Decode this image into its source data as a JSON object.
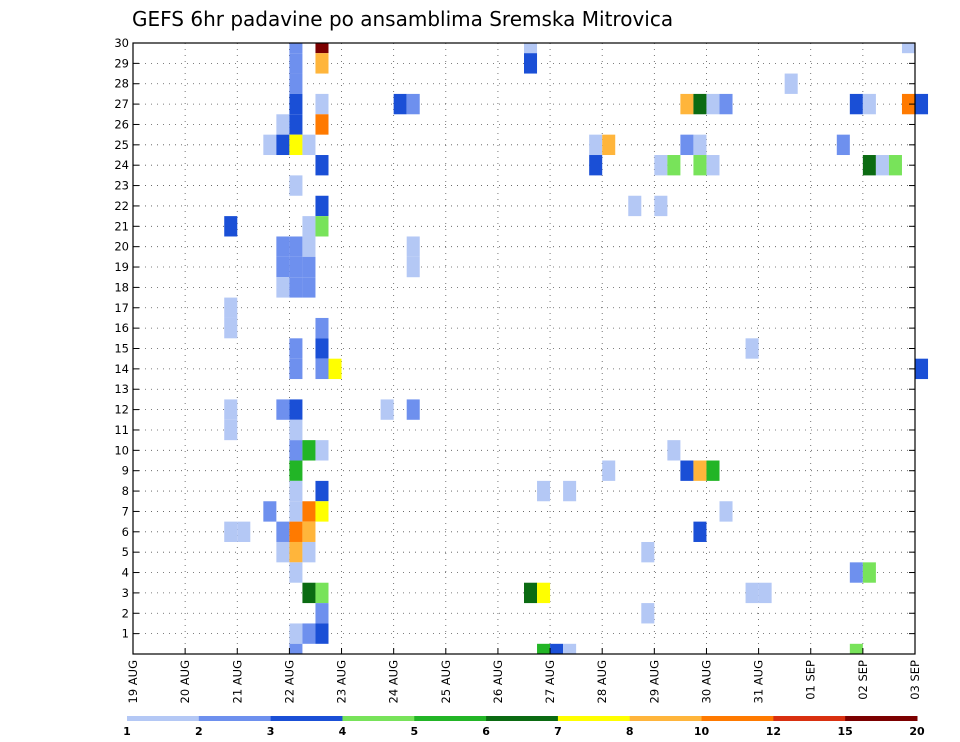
{
  "chart_data": {
    "type": "heatmap",
    "title": "GEFS 6hr padavine po ansamblima Sremska Mitrovica",
    "xlabel": "",
    "ylabel": "",
    "x_tick_labels": [
      "19 AUG",
      "20 AUG",
      "21 AUG",
      "22 AUG",
      "23 AUG",
      "24 AUG",
      "25 AUG",
      "26 AUG",
      "27 AUG",
      "28 AUG",
      "29 AUG",
      "30 AUG",
      "31 AUG",
      "01 SEP",
      "02 SEP",
      "03 SEP"
    ],
    "x_range_days": [
      0,
      15
    ],
    "y_tick_labels": [
      "1",
      "2",
      "3",
      "4",
      "5",
      "6",
      "7",
      "8",
      "9",
      "10",
      "11",
      "12",
      "13",
      "14",
      "15",
      "16",
      "17",
      "18",
      "19",
      "20",
      "21",
      "22",
      "23",
      "24",
      "25",
      "26",
      "27",
      "28",
      "29",
      "30"
    ],
    "y_range": [
      0,
      30
    ],
    "grid": true,
    "legend": "bottom colorbar",
    "colorbar": {
      "bounds_labels": [
        "1",
        "2",
        "3",
        "4",
        "5",
        "6",
        "7",
        "8",
        "10",
        "12",
        "15",
        "20"
      ],
      "colors": [
        "#b4c8f5",
        "#6e90ee",
        "#1a4fd6",
        "#78e35a",
        "#22b526",
        "#0b6b12",
        "#ffff00",
        "#ffb53b",
        "#ff7a00",
        "#d93010",
        "#7c0000"
      ]
    },
    "cells": [
      [
        3,
        30,
        1
      ],
      [
        3.5,
        30,
        10
      ],
      [
        7.5,
        30,
        0
      ],
      [
        14.75,
        30,
        0
      ],
      [
        3,
        29,
        1
      ],
      [
        3.5,
        29,
        7
      ],
      [
        7.5,
        29,
        2
      ],
      [
        3,
        28,
        1
      ],
      [
        12.5,
        28,
        0
      ],
      [
        3,
        27,
        2
      ],
      [
        3.5,
        27,
        0
      ],
      [
        5,
        27,
        2
      ],
      [
        5.25,
        27,
        1
      ],
      [
        10.5,
        27,
        7
      ],
      [
        10.75,
        27,
        5
      ],
      [
        11,
        27,
        0
      ],
      [
        11.25,
        27,
        1
      ],
      [
        13.75,
        27,
        2
      ],
      [
        14,
        27,
        0
      ],
      [
        14.75,
        27,
        8
      ],
      [
        15,
        27,
        2
      ],
      [
        2.75,
        26,
        0
      ],
      [
        3,
        26,
        2
      ],
      [
        3.5,
        26,
        8
      ],
      [
        2.5,
        25,
        0
      ],
      [
        2.75,
        25,
        2
      ],
      [
        3,
        25,
        6
      ],
      [
        3.25,
        25,
        0
      ],
      [
        8.75,
        25,
        0
      ],
      [
        9,
        25,
        7
      ],
      [
        10.5,
        25,
        1
      ],
      [
        10.75,
        25,
        0
      ],
      [
        13.5,
        25,
        1
      ],
      [
        3.5,
        24,
        2
      ],
      [
        8.75,
        24,
        2
      ],
      [
        10,
        24,
        0
      ],
      [
        10.25,
        24,
        3
      ],
      [
        10.75,
        24,
        3
      ],
      [
        11,
        24,
        0
      ],
      [
        14,
        24,
        5
      ],
      [
        14.25,
        24,
        0
      ],
      [
        14.5,
        24,
        3
      ],
      [
        3,
        23,
        0
      ],
      [
        3.5,
        22,
        2
      ],
      [
        9.5,
        22,
        0
      ],
      [
        10,
        22,
        0
      ],
      [
        1.75,
        21,
        2
      ],
      [
        3.25,
        21,
        0
      ],
      [
        3.5,
        21,
        3
      ],
      [
        2.75,
        20,
        1
      ],
      [
        3,
        20,
        1
      ],
      [
        3.25,
        20,
        0
      ],
      [
        5.25,
        20,
        0
      ],
      [
        2.75,
        19,
        1
      ],
      [
        3,
        19,
        1
      ],
      [
        3.25,
        19,
        1
      ],
      [
        5.25,
        19,
        0
      ],
      [
        2.75,
        18,
        0
      ],
      [
        3,
        18,
        1
      ],
      [
        3.25,
        18,
        1
      ],
      [
        1.75,
        17,
        0
      ],
      [
        1.75,
        16,
        0
      ],
      [
        3.5,
        16,
        1
      ],
      [
        3,
        15,
        1
      ],
      [
        3.5,
        15,
        2
      ],
      [
        11.75,
        15,
        0
      ],
      [
        3,
        14,
        1
      ],
      [
        3.5,
        14,
        1
      ],
      [
        3.75,
        14,
        6
      ],
      [
        15,
        14,
        2
      ],
      [
        1.75,
        12,
        0
      ],
      [
        2.75,
        12,
        1
      ],
      [
        3,
        12,
        2
      ],
      [
        4.75,
        12,
        0
      ],
      [
        5.25,
        12,
        1
      ],
      [
        1.75,
        11,
        0
      ],
      [
        3,
        11,
        0
      ],
      [
        3,
        10,
        1
      ],
      [
        3.25,
        10,
        4
      ],
      [
        3.5,
        10,
        0
      ],
      [
        10.25,
        10,
        0
      ],
      [
        3,
        9,
        4
      ],
      [
        9,
        9,
        0
      ],
      [
        10.5,
        9,
        2
      ],
      [
        10.75,
        9,
        7
      ],
      [
        11,
        9,
        4
      ],
      [
        3,
        8,
        0
      ],
      [
        3.5,
        8,
        2
      ],
      [
        7.75,
        8,
        0
      ],
      [
        8.25,
        8,
        0
      ],
      [
        2.5,
        7,
        1
      ],
      [
        3,
        7,
        0
      ],
      [
        3.25,
        7,
        8
      ],
      [
        3.5,
        7,
        6
      ],
      [
        11.25,
        7,
        0
      ],
      [
        1.75,
        6,
        0
      ],
      [
        2,
        6,
        0
      ],
      [
        2.75,
        6,
        1
      ],
      [
        3,
        6,
        8
      ],
      [
        3.25,
        6,
        7
      ],
      [
        10.75,
        6,
        2
      ],
      [
        2.75,
        5,
        0
      ],
      [
        3,
        5,
        7
      ],
      [
        3.25,
        5,
        0
      ],
      [
        9.75,
        5,
        0
      ],
      [
        3,
        4,
        0
      ],
      [
        13.75,
        4,
        1
      ],
      [
        14,
        4,
        3
      ],
      [
        3.25,
        3,
        5
      ],
      [
        3.5,
        3,
        3
      ],
      [
        7.5,
        3,
        5
      ],
      [
        7.75,
        3,
        6
      ],
      [
        11.75,
        3,
        0
      ],
      [
        12,
        3,
        0
      ],
      [
        3.5,
        2,
        1
      ],
      [
        9.75,
        2,
        0
      ],
      [
        3,
        1,
        0
      ],
      [
        3.25,
        1,
        1
      ],
      [
        3.5,
        1,
        2
      ],
      [
        3,
        0,
        1
      ],
      [
        7.75,
        0,
        4
      ],
      [
        8,
        0,
        2
      ],
      [
        8.25,
        0,
        0
      ],
      [
        13.75,
        0,
        3
      ]
    ]
  }
}
